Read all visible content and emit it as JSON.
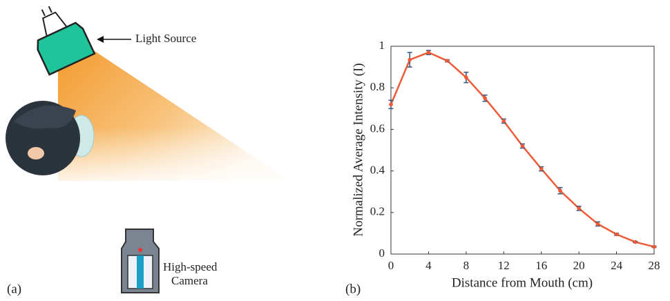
{
  "panel_a": {
    "label": "(a)",
    "light_label": "Light Source",
    "camera_label": [
      "High-speed",
      "Camera"
    ]
  },
  "chart_data": {
    "type": "line",
    "panel_label": "(b)",
    "x_label": "Distance from Mouth (cm)",
    "y_label": "Normalized Average Intensity (I)",
    "x": [
      0,
      2,
      4,
      6,
      8,
      10,
      12,
      14,
      16,
      18,
      20,
      22,
      24,
      26,
      28
    ],
    "series": [
      {
        "color": "#ee5a36",
        "error_color": "#3d5a80",
        "values": [
          0.72,
          0.935,
          0.97,
          0.93,
          0.85,
          0.75,
          0.64,
          0.52,
          0.41,
          0.305,
          0.22,
          0.145,
          0.095,
          0.058,
          0.035
        ],
        "errors": [
          0.02,
          0.035,
          0.01,
          0.005,
          0.025,
          0.015,
          0.01,
          0.01,
          0.01,
          0.015,
          0.01,
          0.01,
          0.005,
          0.003,
          0.003
        ]
      }
    ],
    "xlim": [
      0,
      28
    ],
    "xticks": [
      0,
      4,
      8,
      12,
      16,
      20,
      24,
      28
    ],
    "ylim": [
      0,
      1
    ],
    "yticks": [
      0,
      0.2,
      0.4,
      0.6,
      0.8,
      1
    ]
  }
}
